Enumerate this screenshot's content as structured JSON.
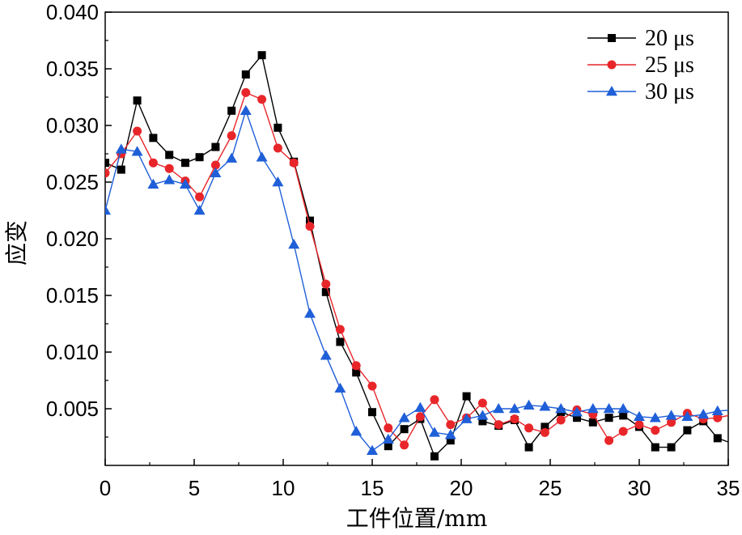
{
  "chart_data": {
    "type": "line",
    "title": "",
    "xlabel": "工件位置/mm",
    "ylabel": "应变",
    "xlim": [
      0,
      35
    ],
    "ylim": [
      0.0,
      0.04
    ],
    "x_ticks": [
      "0",
      "5",
      "10",
      "15",
      "20",
      "25",
      "30",
      "35"
    ],
    "y_ticks": [
      "0.005",
      "0.010",
      "0.015",
      "0.020",
      "0.025",
      "0.030",
      "0.035",
      "0.040"
    ],
    "grid": false,
    "legend_position": "top-right",
    "series": [
      {
        "name": "20 μs",
        "color": "#000000",
        "marker": "square",
        "x": [
          0,
          0.9,
          1.8,
          2.7,
          3.6,
          4.5,
          5.3,
          6.2,
          7.1,
          7.9,
          8.8,
          9.7,
          10.6,
          11.5,
          12.4,
          13.2,
          14.1,
          15.0,
          15.9,
          16.8,
          17.7,
          18.5,
          19.4,
          20.3,
          21.2,
          22.1,
          23.0,
          23.8,
          24.7,
          25.6,
          26.5,
          27.4,
          28.3,
          29.1,
          30.0,
          30.9,
          31.8,
          32.7,
          33.6,
          34.4,
          35.3
        ],
        "y": [
          0.0267,
          0.0261,
          0.0322,
          0.0289,
          0.0274,
          0.0267,
          0.0272,
          0.0281,
          0.0313,
          0.0345,
          0.0362,
          0.0298,
          0.0268,
          0.0216,
          0.0153,
          0.0109,
          0.0082,
          0.0047,
          0.0017,
          0.0032,
          0.0041,
          0.0008,
          0.0022,
          0.0061,
          0.0039,
          0.0035,
          0.004,
          0.0016,
          0.0034,
          0.0047,
          0.0042,
          0.0038,
          0.0042,
          0.0044,
          0.0034,
          0.0016,
          0.0016,
          0.0031,
          0.0039,
          0.0024,
          0.0019
        ]
      },
      {
        "name": "25 μs",
        "color": "#e8262a",
        "marker": "circle",
        "x": [
          0,
          0.9,
          1.8,
          2.7,
          3.6,
          4.5,
          5.3,
          6.2,
          7.1,
          7.9,
          8.8,
          9.7,
          10.6,
          11.5,
          12.4,
          13.2,
          14.1,
          15.0,
          15.9,
          16.8,
          17.7,
          18.5,
          19.4,
          20.3,
          21.2,
          22.1,
          23.0,
          23.8,
          24.7,
          25.6,
          26.5,
          27.4,
          28.3,
          29.1,
          30.0,
          30.9,
          31.8,
          32.7,
          33.6,
          34.4,
          35.3
        ],
        "y": [
          0.0258,
          0.0275,
          0.0295,
          0.0267,
          0.0262,
          0.0251,
          0.0237,
          0.0265,
          0.0291,
          0.0329,
          0.0323,
          0.028,
          0.0267,
          0.0211,
          0.016,
          0.012,
          0.0088,
          0.007,
          0.0033,
          0.0018,
          0.0043,
          0.0058,
          0.0036,
          0.0042,
          0.0055,
          0.0036,
          0.0041,
          0.0033,
          0.0029,
          0.004,
          0.0049,
          0.0045,
          0.0022,
          0.003,
          0.0036,
          0.0031,
          0.0038,
          0.0046,
          0.0041,
          0.0042,
          0.0045
        ]
      },
      {
        "name": "30 μs",
        "color": "#1f5fd8",
        "marker": "triangle",
        "x": [
          0,
          0.9,
          1.8,
          2.7,
          3.6,
          4.5,
          5.3,
          6.2,
          7.1,
          7.9,
          8.8,
          9.7,
          10.6,
          11.5,
          12.4,
          13.2,
          14.1,
          15.0,
          15.9,
          16.8,
          17.7,
          18.5,
          19.4,
          20.3,
          21.2,
          22.1,
          23.0,
          23.8,
          24.7,
          25.6,
          26.5,
          27.4,
          28.3,
          29.1,
          30.0,
          30.9,
          31.8,
          32.7,
          33.6,
          34.4,
          35.3
        ],
        "y": [
          0.0225,
          0.0279,
          0.0277,
          0.0248,
          0.0252,
          0.0248,
          0.0225,
          0.0258,
          0.0271,
          0.0313,
          0.0272,
          0.025,
          0.0195,
          0.0134,
          0.0097,
          0.0068,
          0.003,
          0.0013,
          0.0023,
          0.0042,
          0.0051,
          0.0029,
          0.0027,
          0.0041,
          0.0044,
          0.005,
          0.005,
          0.0053,
          0.0052,
          0.005,
          0.0047,
          0.005,
          0.005,
          0.005,
          0.0043,
          0.0042,
          0.0044,
          0.0043,
          0.0045,
          0.0048,
          0.0049
        ]
      }
    ]
  }
}
